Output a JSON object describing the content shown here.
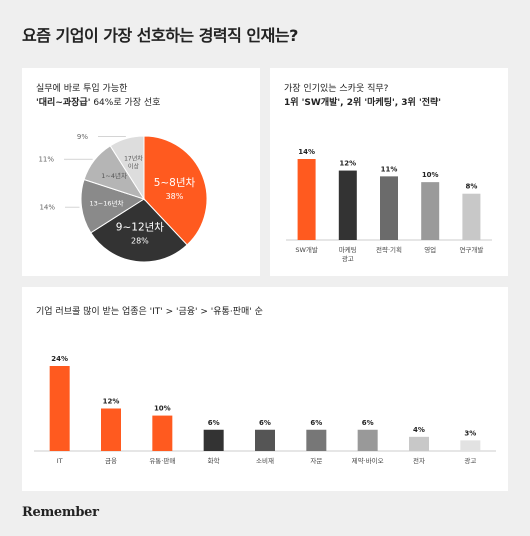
{
  "title": "요즘 기업이 가장 선호하는 경력직 인재는?",
  "brand": "Remember",
  "colors": {
    "accent": "#ff5a1f",
    "dark": "#333333",
    "mid": "#6b6b6b",
    "gray": "#9a9a9a",
    "light": "#c8c8c8",
    "lighter": "#e2e2e2"
  },
  "chart_data": [
    {
      "type": "pie",
      "subtitle_line1": "실무에 바로 투입 가능한",
      "subtitle_line2_bold": "'대리~과장급'",
      "subtitle_line2_rest": " 64%로 가장 선호",
      "slices": [
        {
          "label": "5~8년차",
          "value": 38,
          "pct": "38%",
          "color": "#ff5a1f"
        },
        {
          "label": "9~12년차",
          "value": 28,
          "pct": "28%",
          "color": "#333333"
        },
        {
          "label": "13~16년차",
          "value": 14,
          "pct": "14%",
          "color": "#8a8a8a"
        },
        {
          "label": "1~4년차",
          "value": 11,
          "pct": "11%",
          "color": "#b5b5b5"
        },
        {
          "label": "17년차 이상",
          "value": 9,
          "pct": "9%",
          "color": "#dddddd"
        }
      ]
    },
    {
      "type": "bar",
      "subtitle_line1": "가장 인기있는 스카웃 직무?",
      "subtitle_line2": "1위 'SW개발', 2위 '마케팅', 3위 '전략'",
      "categories": [
        "SW개발",
        "마케팅\n광고",
        "전략·기획",
        "영업",
        "연구개발"
      ],
      "values": [
        14,
        12,
        11,
        10,
        8
      ],
      "labels": [
        "14%",
        "12%",
        "11%",
        "10%",
        "8%"
      ],
      "colors": [
        "#ff5a1f",
        "#333333",
        "#6b6b6b",
        "#9a9a9a",
        "#c8c8c8"
      ],
      "ylim": [
        0,
        14
      ]
    },
    {
      "type": "bar",
      "subtitle": "기업 러브콜 많이 받는 업종은  'IT' > '금융' > '유통·판매' 순",
      "categories": [
        "IT",
        "금융",
        "유통·판매",
        "화학",
        "소비재",
        "자문",
        "제약·바이오",
        "전자",
        "광고"
      ],
      "values": [
        24,
        12,
        10,
        6,
        6,
        6,
        6,
        4,
        3
      ],
      "labels": [
        "24%",
        "12%",
        "10%",
        "6%",
        "6%",
        "6%",
        "6%",
        "4%",
        "3%"
      ],
      "colors": [
        "#ff5a1f",
        "#ff5a1f",
        "#ff5a1f",
        "#333333",
        "#555555",
        "#777777",
        "#999999",
        "#c8c8c8",
        "#e2e2e2"
      ],
      "ylim": [
        0,
        24
      ]
    }
  ]
}
